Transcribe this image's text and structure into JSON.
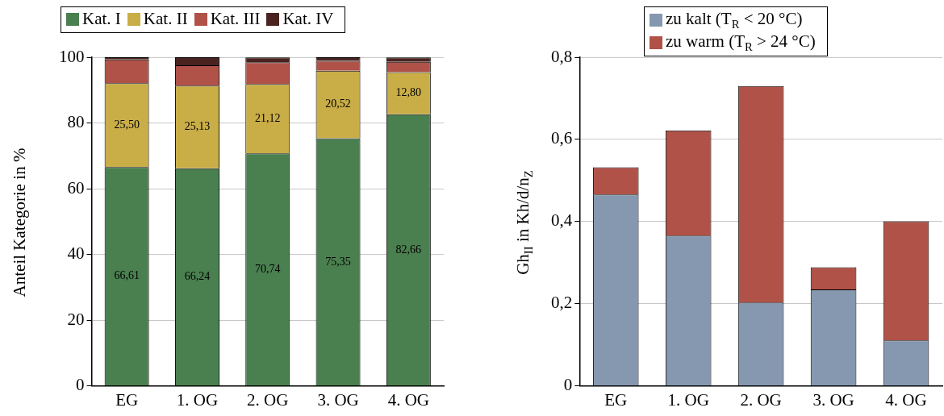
{
  "chart_data": [
    {
      "type": "bar",
      "stacked": true,
      "categories": [
        "EG",
        "1. OG",
        "2. OG",
        "3. OG",
        "4. OG"
      ],
      "ylabel": "Anteil Kategorie in %",
      "ylim": [
        0,
        100
      ],
      "yticks": [
        0,
        20,
        40,
        60,
        80,
        100
      ],
      "grid": "y",
      "legend": "top",
      "series": [
        {
          "name": "Kat. I",
          "color": "#4a7f4f",
          "values": [
            66.61,
            66.24,
            70.74,
            75.35,
            82.66
          ],
          "value_labels": [
            "66,61",
            "66,24",
            "70,74",
            "75,35",
            "82,66"
          ]
        },
        {
          "name": "Kat. II",
          "color": "#c9ad47",
          "values": [
            25.5,
            25.13,
            21.12,
            20.52,
            12.8
          ],
          "value_labels": [
            "25,50",
            "25,13",
            "21,12",
            "20,52",
            "12,80"
          ]
        },
        {
          "name": "Kat. III",
          "color": "#b05248",
          "values": [
            7.2,
            6.2,
            6.6,
            3.0,
            3.1
          ]
        },
        {
          "name": "Kat. IV",
          "color": "#4a2320",
          "values": [
            0.7,
            2.4,
            1.5,
            1.1,
            1.4
          ]
        }
      ]
    },
    {
      "type": "bar",
      "stacked": true,
      "categories": [
        "EG",
        "1. OG",
        "2. OG",
        "3. OG",
        "4. OG"
      ],
      "ylabel": "Gh$_{II}$ in Kh/d/n$_{Z}$",
      "ylim": [
        0,
        0.8
      ],
      "yticks": [
        0,
        {
          "value": 0.2,
          "label": "0,2"
        },
        {
          "value": 0.4,
          "label": "0,4"
        },
        {
          "value": 0.6,
          "label": "0,6"
        },
        {
          "value": 0.8,
          "label": "0,8"
        }
      ],
      "grid": "y",
      "legend": "top",
      "series": [
        {
          "name": "zu kalt (T$_{R}$ < 20 °C)",
          "color": "#8698b0",
          "values": [
            0.466,
            0.366,
            0.203,
            0.235,
            0.111
          ]
        },
        {
          "name": "zu warm (T$_{R}$ > 24 °C)",
          "color": "#b05248",
          "values": [
            0.066,
            0.256,
            0.527,
            0.054,
            0.29
          ]
        }
      ]
    }
  ]
}
